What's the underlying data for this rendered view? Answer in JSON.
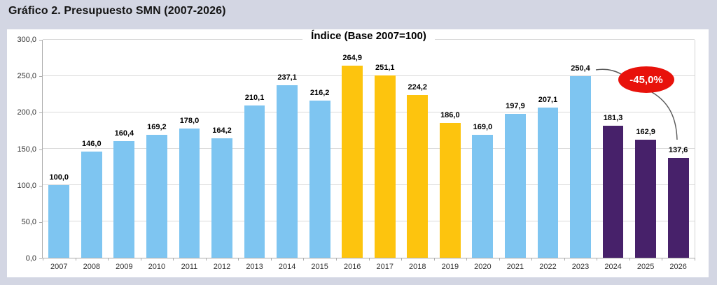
{
  "page": {
    "title": "Gráfico 2. Presupuesto SMN (2007-2026)"
  },
  "chart_data": {
    "type": "bar",
    "title": "Índice (Base 2007=100)",
    "categories": [
      "2007",
      "2008",
      "2009",
      "2010",
      "2011",
      "2012",
      "2013",
      "2014",
      "2015",
      "2016",
      "2017",
      "2018",
      "2019",
      "2020",
      "2021",
      "2022",
      "2023",
      "2024",
      "2025",
      "2026"
    ],
    "values": [
      100.0,
      146.0,
      160.4,
      169.2,
      178.0,
      164.2,
      210.1,
      237.1,
      216.2,
      264.9,
      251.1,
      224.2,
      186.0,
      169.0,
      197.9,
      207.1,
      250.4,
      181.3,
      162.9,
      137.6
    ],
    "value_labels": [
      "100,0",
      "146,0",
      "160,4",
      "169,2",
      "178,0",
      "164,2",
      "210,1",
      "237,1",
      "216,2",
      "264,9",
      "251,1",
      "224,2",
      "186,0",
      "169,0",
      "197,9",
      "207,1",
      "250,4",
      "181,3",
      "162,9",
      "137,6"
    ],
    "bar_groups": [
      "blue",
      "blue",
      "blue",
      "blue",
      "blue",
      "blue",
      "blue",
      "blue",
      "blue",
      "yellow",
      "yellow",
      "yellow",
      "yellow",
      "blue",
      "blue",
      "blue",
      "blue",
      "purple",
      "purple",
      "purple"
    ],
    "group_colors": {
      "blue": "#7EC5F1",
      "yellow": "#FDC40E",
      "purple": "#47216A"
    },
    "ylim": [
      0,
      300
    ],
    "ytick_step": 50,
    "ytick_labels": [
      "0,0",
      "50,0",
      "100,0",
      "150,0",
      "200,0",
      "250,0",
      "300,0"
    ],
    "grid": true,
    "legend": "none",
    "annotation": {
      "text": "-45,0%",
      "bg_color": "#E8120B",
      "text_color": "#FFFFFF",
      "connects_from_label": "250,4",
      "connects_to_label": "137,6"
    }
  }
}
